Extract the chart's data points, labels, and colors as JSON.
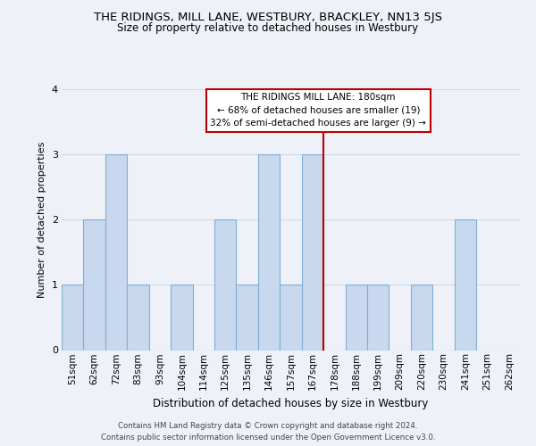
{
  "title": "THE RIDINGS, MILL LANE, WESTBURY, BRACKLEY, NN13 5JS",
  "subtitle": "Size of property relative to detached houses in Westbury",
  "xlabel": "Distribution of detached houses by size in Westbury",
  "ylabel": "Number of detached properties",
  "categories": [
    "51sqm",
    "62sqm",
    "72sqm",
    "83sqm",
    "93sqm",
    "104sqm",
    "114sqm",
    "125sqm",
    "135sqm",
    "146sqm",
    "157sqm",
    "167sqm",
    "178sqm",
    "188sqm",
    "199sqm",
    "209sqm",
    "220sqm",
    "230sqm",
    "241sqm",
    "251sqm",
    "262sqm"
  ],
  "values": [
    1,
    2,
    3,
    1,
    0,
    1,
    0,
    2,
    1,
    3,
    1,
    3,
    0,
    1,
    1,
    0,
    1,
    0,
    2,
    0,
    0
  ],
  "bar_color": "#c8d8ee",
  "bar_edge_color": "#7fafd4",
  "ylim": [
    0,
    4
  ],
  "yticks": [
    0,
    1,
    2,
    3,
    4
  ],
  "property_line_x": 12.0,
  "property_line_color": "#bb0000",
  "annotation_title": "THE RIDINGS MILL LANE: 180sqm",
  "annotation_line1": "← 68% of detached houses are smaller (19)",
  "annotation_line2": "32% of semi-detached houses are larger (9) →",
  "annotation_box_facecolor": "#ffffff",
  "annotation_box_edgecolor": "#bb0000",
  "footnote1": "Contains HM Land Registry data © Crown copyright and database right 2024.",
  "footnote2": "Contains public sector information licensed under the Open Government Licence v3.0.",
  "background_color": "#eef2f8",
  "grid_color": "#d0d8e8",
  "title_fontsize": 9.5,
  "subtitle_fontsize": 8.5,
  "xlabel_fontsize": 8.5,
  "ylabel_fontsize": 8.0,
  "tick_fontsize": 7.5,
  "annotation_fontsize": 7.5,
  "footnote_fontsize": 6.2
}
